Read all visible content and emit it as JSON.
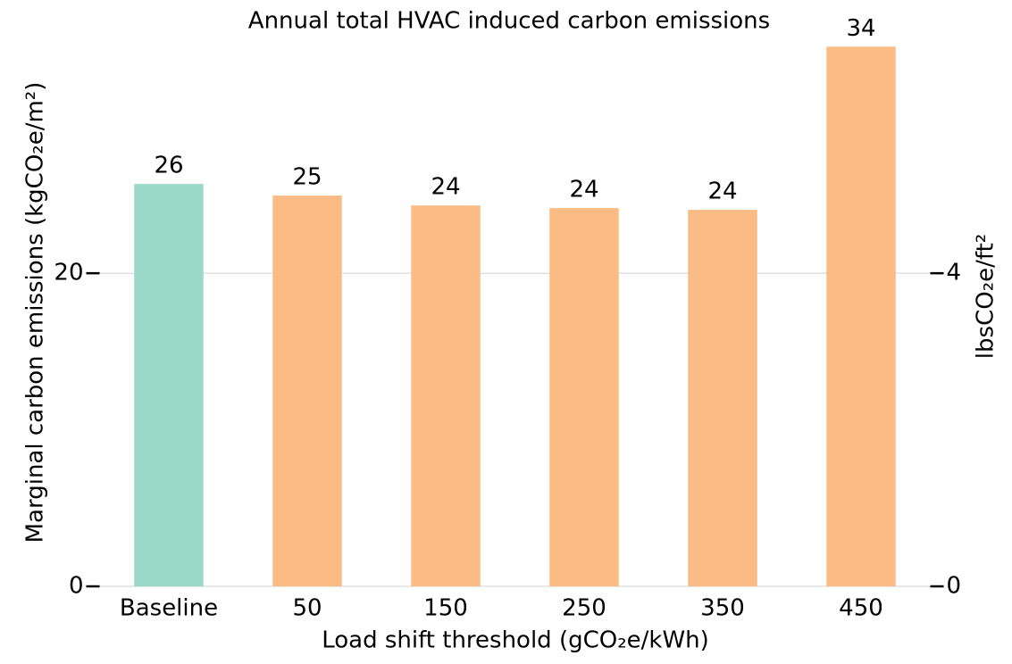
{
  "chart_data": {
    "type": "bar",
    "title": "Annual total HVAC induced carbon emissions",
    "xlabel": "Load shift threshold (gCO₂e/kWh)",
    "ylabel": "Marginal carbon emissions (kgCO₂e/m²)",
    "y2label": "lbsCO₂e/ft²",
    "categories": [
      "Baseline",
      "50",
      "150",
      "250",
      "350",
      "450"
    ],
    "values": [
      25.7,
      24.96,
      24.33,
      24.16,
      24.05,
      34.47
    ],
    "value_labels": [
      "26",
      "25",
      "24",
      "24",
      "24",
      "34"
    ],
    "colors": [
      "#9bd8c8",
      "#fbbb85",
      "#fbbb85",
      "#fbbb85",
      "#fbbb85",
      "#fbbb85"
    ],
    "ylim": [
      0,
      35
    ],
    "yticks": [
      0,
      20
    ],
    "y2lim": [
      0,
      7
    ],
    "y2ticks": [
      0,
      4
    ],
    "grid": true
  }
}
